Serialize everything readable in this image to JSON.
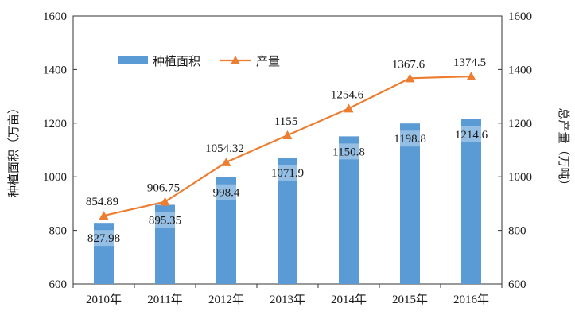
{
  "chart_data": {
    "type": "bar",
    "title": "",
    "categories": [
      "2010年",
      "2011年",
      "2012年",
      "2013年",
      "2014年",
      "2015年",
      "2016年"
    ],
    "series": [
      {
        "name": "种植面积",
        "type": "bar",
        "axis": "left",
        "color": "#5B9BD5",
        "values": [
          827.98,
          895.35,
          998.4,
          1071.9,
          1150.8,
          1198.8,
          1214.6
        ],
        "labels": [
          "827.98",
          "895.35",
          "998.4",
          "1071.9",
          "1150.8",
          "1198.8",
          "1214.6"
        ]
      },
      {
        "name": "产量",
        "type": "line",
        "axis": "right",
        "color": "#ED7D31",
        "marker": "triangle",
        "values": [
          854.89,
          906.75,
          1054.32,
          1155,
          1254.6,
          1367.6,
          1374.5
        ],
        "labels": [
          "854.89",
          "906.75",
          "1054.32",
          "1155",
          "1254.6",
          "1367.6",
          "1374.5"
        ]
      }
    ],
    "ylabel_left": "种植面积（万亩）",
    "ylabel_right": "总产量（万吨）",
    "ylim_left": [
      600,
      1600
    ],
    "ylim_right": [
      600,
      1600
    ],
    "yticks_left": [
      "600",
      "800",
      "1000",
      "1200",
      "1400",
      "1600"
    ],
    "yticks_right": [
      "600",
      "800",
      "1000",
      "1200",
      "1400",
      "1600"
    ],
    "grid": false,
    "legend": "top-left"
  }
}
